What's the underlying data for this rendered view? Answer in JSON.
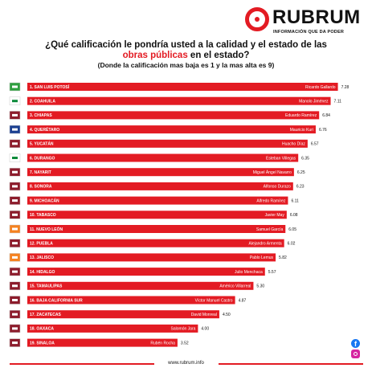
{
  "brand": {
    "name": "RUBRUM",
    "tagline": "INFORMACIÓN QUE DA PODER"
  },
  "question": {
    "line1": "¿Qué calificación le pondría usted a la calidad y el estado de las",
    "line2_highlight": "obras públicas",
    "line2_rest": " en el estado?",
    "line3": "(Donde la calificación mas baja es 1 y la mas alta es 9)"
  },
  "footer": {
    "url": "www.rubrum.info"
  },
  "colors": {
    "bar": "#e31b23",
    "accent": "#e31b23"
  },
  "chart_data": {
    "type": "bar",
    "orientation": "horizontal",
    "categories": [
      "1. SAN LUIS POTOSÍ",
      "2. COAHUILA",
      "3. CHIAPAS",
      "4. QUERÉTARO",
      "5. YUCATÁN",
      "6. DURANGO",
      "7. NAYARIT",
      "8. SONORA",
      "9. MICHOACÁN",
      "10. TABASCO",
      "11. NUEVO LEÓN",
      "12. PUEBLA",
      "13. JALISCO",
      "14. HIDALGO",
      "15. TAMAULIPAS",
      "16. BAJA CALIFORNIA SUR",
      "17. ZACATECAS",
      "18. OAXACA",
      "19. SINALOA"
    ],
    "governors": [
      "Ricardo Gallardo",
      "Manolo Jiménez",
      "Eduardo Ramírez",
      "Mauricio Kuri",
      "Huacho Díaz",
      "Esteban Villegas",
      "Miguel Ángel Navarro",
      "Alfonso Durazo",
      "Alfredo Ramírez",
      "Javier May",
      "Samuel García",
      "Alejandro Armenta",
      "Pablo Lemus",
      "Julio Menchaca",
      "Américo Villarreal",
      "Víctor Manuel Castro",
      "David Monreal",
      "Salomón Jara",
      "Rubén Rocha"
    ],
    "values": [
      7.28,
      7.11,
      6.84,
      6.76,
      6.57,
      6.35,
      6.25,
      6.23,
      6.11,
      6.08,
      6.05,
      6.02,
      5.82,
      5.57,
      5.3,
      4.87,
      4.5,
      4.0,
      3.52
    ],
    "value_labels": [
      "7.28",
      "7.11",
      "6.84",
      "6.76",
      "6.57",
      "6.35",
      "6.25",
      "6.23",
      "6.11",
      "6.08",
      "6.05",
      "6.02",
      "5.82",
      "5.57",
      "5.30",
      "4.87",
      "4.50",
      "4.00",
      "3.52"
    ],
    "party_icons": [
      "pvem-logo",
      "pri-logo",
      "morena-logo",
      "pan-logo",
      "morena-logo",
      "pri-logo",
      "morena-logo",
      "morena-logo",
      "morena-logo",
      "morena-logo",
      "mc-logo",
      "morena-logo",
      "mc-logo",
      "morena-logo",
      "morena-logo",
      "morena-logo",
      "morena-logo",
      "morena-logo",
      "morena-logo"
    ],
    "xlim": [
      0,
      9
    ]
  }
}
